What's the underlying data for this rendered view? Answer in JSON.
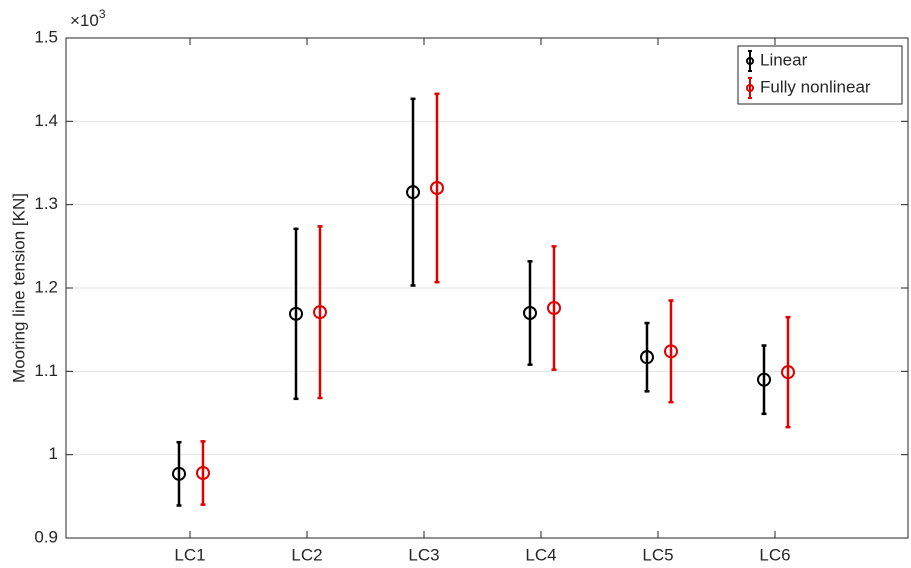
{
  "chart_data": {
    "type": "errorbar",
    "y_label": "Mooring line tension  [KN]",
    "y_multiplier": {
      "base": "×10",
      "exponent": "3"
    },
    "categories": [
      "LC1",
      "LC2",
      "LC3",
      "LC4",
      "LC5",
      "LC6"
    ],
    "series": [
      {
        "name": "Linear",
        "color": "#000000",
        "values": [
          0.977,
          1.169,
          1.315,
          1.17,
          1.117,
          1.09
        ],
        "errors": [
          0.038,
          0.102,
          0.112,
          0.062,
          0.041,
          0.041
        ]
      },
      {
        "name": "Fully nonlinear",
        "color": "#e00000",
        "values": [
          0.978,
          1.171,
          1.32,
          1.176,
          1.124,
          1.099
        ],
        "errors": [
          0.038,
          0.103,
          0.113,
          0.074,
          0.061,
          0.066
        ]
      }
    ],
    "ylim": [
      0.9,
      1.5
    ],
    "yticks": [
      0.9,
      1,
      1.1,
      1.2,
      1.3,
      1.4,
      1.5
    ],
    "grid": true,
    "legend": "top-right"
  }
}
